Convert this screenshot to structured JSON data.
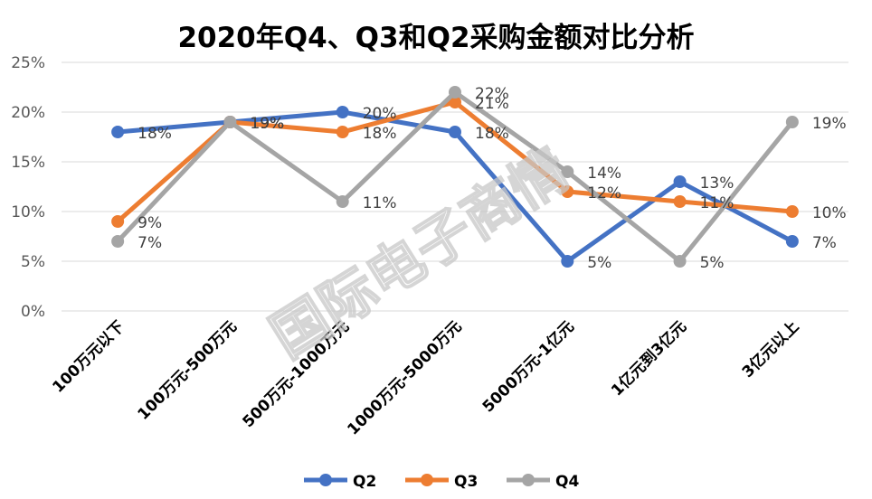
{
  "chart_data": {
    "type": "line",
    "title": "2020年Q4、Q3和Q2采购金额对比分析",
    "categories": [
      "100万元以下",
      "100万元-500万元",
      "500万元-1000万元",
      "1000万元-5000万元",
      "5000万元-1亿元",
      "1亿元到3亿元",
      "3亿元以上"
    ],
    "ylim": [
      0,
      25
    ],
    "yticks": [
      "0%",
      "5%",
      "10%",
      "15%",
      "20%",
      "25%"
    ],
    "grid": true,
    "legend_position": "bottom",
    "series": [
      {
        "name": "Q2",
        "color": "#4472C4",
        "values": [
          18,
          19,
          20,
          18,
          5,
          13,
          7
        ],
        "labels": [
          "18%",
          "19%",
          "20%",
          "18%",
          "5%",
          "13%",
          "7%"
        ]
      },
      {
        "name": "Q3",
        "color": "#ED7D31",
        "values": [
          9,
          19,
          18,
          21,
          12,
          11,
          10
        ],
        "labels": [
          "9%",
          "19%",
          "18%",
          "21%",
          "12%",
          "11%",
          "10%"
        ]
      },
      {
        "name": "Q4",
        "color": "#A5A5A5",
        "values": [
          7,
          19,
          11,
          22,
          14,
          5,
          19
        ],
        "labels": [
          "7%",
          "19%",
          "11%",
          "22%",
          "14%",
          "5%",
          "19%"
        ]
      }
    ]
  },
  "watermark": "国际电子商情"
}
